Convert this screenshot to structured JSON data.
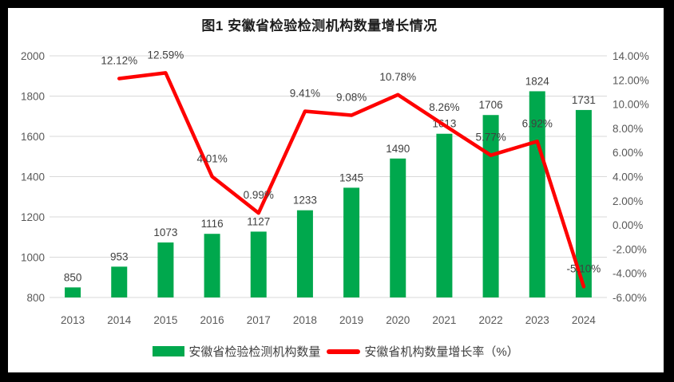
{
  "title": "图1 安徽省检验检测机构数量增长情况",
  "colors": {
    "bar": "#00A84D",
    "line": "#FE0000",
    "gridline": "#D9D9D9",
    "axis_text": "#595959",
    "label_text": "#404040",
    "frame": "#000000",
    "background": "#FFFFFF"
  },
  "legend": [
    {
      "type": "bar",
      "label": "安徽省检验检测机构数量"
    },
    {
      "type": "line",
      "label": "安徽省机构数量增长率（%）"
    }
  ],
  "chart_data": {
    "type": "bar+line combo",
    "title": "图1 安徽省检验检测机构数量增长情况",
    "categories": [
      "2013",
      "2014",
      "2015",
      "2016",
      "2017",
      "2018",
      "2019",
      "2020",
      "2021",
      "2022",
      "2023",
      "2024"
    ],
    "series": [
      {
        "name": "安徽省检验检测机构数量",
        "type": "bar",
        "axis": "left",
        "values": [
          850,
          953,
          1073,
          1116,
          1127,
          1233,
          1345,
          1490,
          1613,
          1706,
          1824,
          1731
        ],
        "data_labels": [
          "850",
          "953",
          "1073",
          "1116",
          "1127",
          "1233",
          "1345",
          "1490",
          "1613",
          "1706",
          "1824",
          "1731"
        ]
      },
      {
        "name": "安徽省机构数量增长率（%）",
        "type": "line",
        "axis": "right",
        "values": [
          null,
          12.12,
          12.59,
          4.01,
          0.99,
          9.41,
          9.08,
          10.78,
          8.26,
          5.77,
          6.92,
          -5.1
        ],
        "data_labels": [
          null,
          "12.12%",
          "12.59%",
          "4.01%",
          "0.99%",
          "9.41%",
          "9.08%",
          "10.78%",
          "8.26%",
          "5.77%",
          "6.92%",
          "-5.10%"
        ]
      }
    ],
    "left_axis": {
      "min": 800,
      "max": 2000,
      "step": 200,
      "ticks": [
        "2000",
        "1800",
        "1600",
        "1400",
        "1200",
        "1000",
        "800"
      ]
    },
    "right_axis": {
      "min": -6,
      "max": 14,
      "step": 2,
      "ticks": [
        "14.00%",
        "12.00%",
        "10.00%",
        "8.00%",
        "6.00%",
        "4.00%",
        "2.00%",
        "0.00%",
        "-2.00%",
        "-4.00%",
        "-6.00%"
      ]
    },
    "grid": true,
    "legend_position": "bottom"
  }
}
